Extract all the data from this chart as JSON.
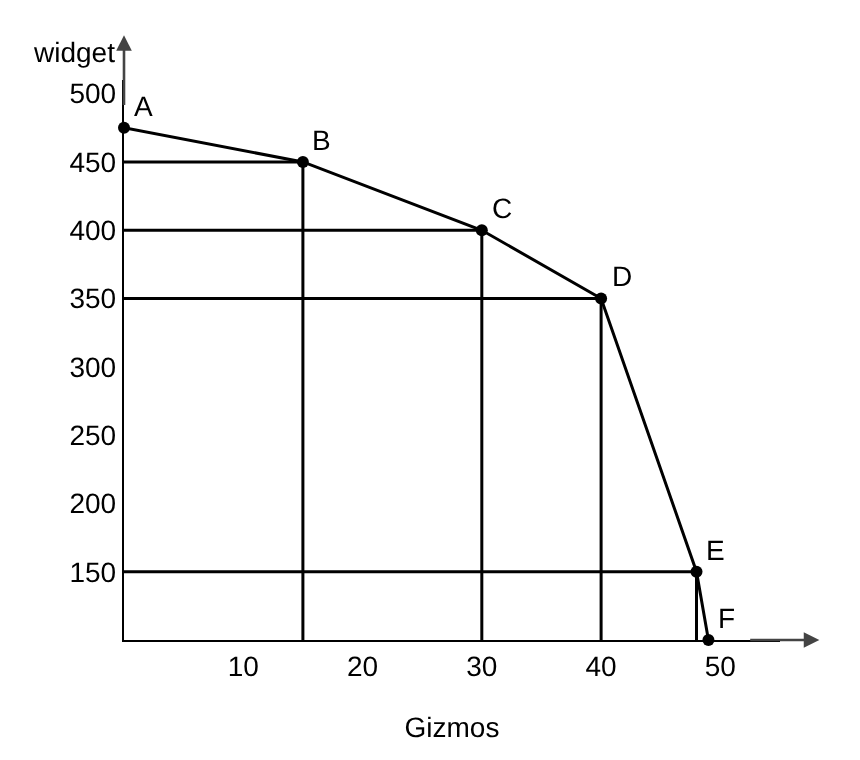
{
  "chart_data": {
    "type": "line",
    "xlabel": "Gizmos",
    "ylabel": "widget",
    "xlim": [
      0,
      55
    ],
    "ylim": [
      100,
      510
    ],
    "xticks": [
      10,
      20,
      30,
      40,
      50
    ],
    "yticks": [
      150,
      200,
      250,
      300,
      350,
      400,
      450,
      500
    ],
    "grid": false,
    "marker": "circle",
    "line_style": "solid",
    "series": [
      {
        "color": "#000000",
        "x": [
          0,
          15,
          30,
          40,
          48,
          49
        ],
        "values": [
          475,
          450,
          400,
          350,
          150,
          100
        ]
      },
      {
        "color": "#000000",
        "marker": "none",
        "x": [
          0,
          15,
          15
        ],
        "values": [
          450,
          450,
          100
        ]
      },
      {
        "color": "#000000",
        "marker": "none",
        "x": [
          0,
          30,
          30
        ],
        "values": [
          400,
          400,
          100
        ]
      },
      {
        "color": "#000000",
        "marker": "none",
        "x": [
          0,
          40,
          40
        ],
        "values": [
          350,
          350,
          100
        ]
      },
      {
        "color": "#000000",
        "marker": "none",
        "x": [
          0,
          48,
          48
        ],
        "values": [
          150,
          150,
          100
        ]
      }
    ],
    "annotations": [
      {
        "text": "A",
        "x": 0,
        "y": 475
      },
      {
        "text": "B",
        "x": 15,
        "y": 450
      },
      {
        "text": "C",
        "x": 30,
        "y": 400
      },
      {
        "text": "D",
        "x": 40,
        "y": 350
      },
      {
        "text": "E",
        "x": 48,
        "y": 150
      },
      {
        "text": "F",
        "x": 49,
        "y": 100
      }
    ]
  }
}
